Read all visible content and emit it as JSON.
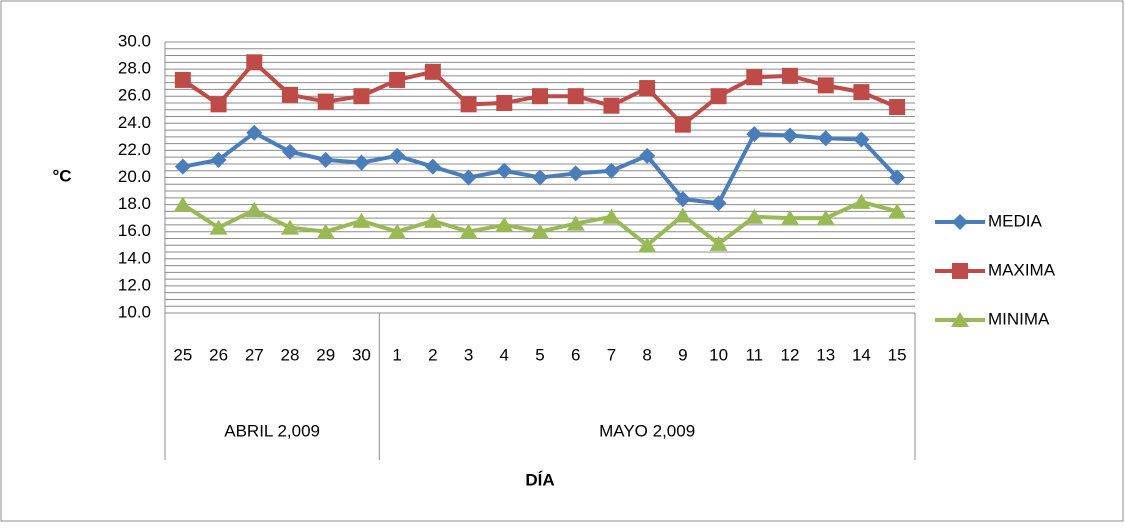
{
  "chart_data": {
    "type": "line",
    "categories": [
      "25",
      "26",
      "27",
      "28",
      "29",
      "30",
      "1",
      "2",
      "3",
      "4",
      "5",
      "6",
      "7",
      "8",
      "9",
      "10",
      "11",
      "12",
      "13",
      "14",
      "15"
    ],
    "groups": [
      {
        "label": "ABRIL 2,009",
        "count": 6
      },
      {
        "label": "MAYO 2,009",
        "count": 15
      }
    ],
    "x_label": "DÍA",
    "y_label": "°C",
    "ylim": [
      10,
      30
    ],
    "yticks": [
      {
        "value": 10,
        "label": "10.0"
      },
      {
        "value": 12,
        "label": "12.0"
      },
      {
        "value": 14,
        "label": "14.0"
      },
      {
        "value": 16,
        "label": "16.0"
      },
      {
        "value": 18,
        "label": "18.0"
      },
      {
        "value": 20,
        "label": "20.0"
      },
      {
        "value": 22,
        "label": "22.0"
      },
      {
        "value": 24,
        "label": "24.0"
      },
      {
        "value": 26,
        "label": "26.0"
      },
      {
        "value": 28,
        "label": "28.0"
      },
      {
        "value": 30,
        "label": "30.0"
      }
    ],
    "minor_yticks": [
      10.5,
      11,
      11.5,
      12.5,
      13,
      13.5,
      14.5,
      15,
      15.5,
      16.5,
      17,
      17.5,
      18.5,
      19,
      19.5,
      20.5,
      21,
      21.5,
      22.5,
      23,
      23.5,
      24.5,
      25,
      25.5,
      26.5,
      27,
      27.5,
      28.5,
      29,
      29.5
    ],
    "grid": true,
    "legend": "right",
    "series": [
      {
        "name": "MEDIA",
        "color": "#4a7ebb",
        "marker": "diamond",
        "values": [
          20.8,
          21.3,
          23.3,
          21.9,
          21.3,
          21.1,
          21.6,
          20.8,
          20.0,
          20.5,
          20.0,
          20.3,
          20.5,
          21.6,
          18.4,
          18.1,
          23.2,
          23.1,
          22.9,
          22.8,
          20.0
        ]
      },
      {
        "name": "MAXIMA",
        "color": "#be4b48",
        "marker": "square",
        "values": [
          27.2,
          25.4,
          28.5,
          26.1,
          25.6,
          26.0,
          27.2,
          27.8,
          25.4,
          25.5,
          26.0,
          26.0,
          25.3,
          26.6,
          23.9,
          26.0,
          27.4,
          27.5,
          26.8,
          26.3,
          25.2
        ]
      },
      {
        "name": "MINIMA",
        "color": "#98b954",
        "marker": "triangle",
        "values": [
          18.0,
          16.3,
          17.6,
          16.3,
          16.0,
          16.8,
          16.0,
          16.8,
          16.0,
          16.5,
          16.0,
          16.6,
          17.1,
          15.0,
          17.2,
          15.1,
          17.1,
          17.0,
          17.0,
          18.2,
          17.5
        ]
      }
    ]
  }
}
